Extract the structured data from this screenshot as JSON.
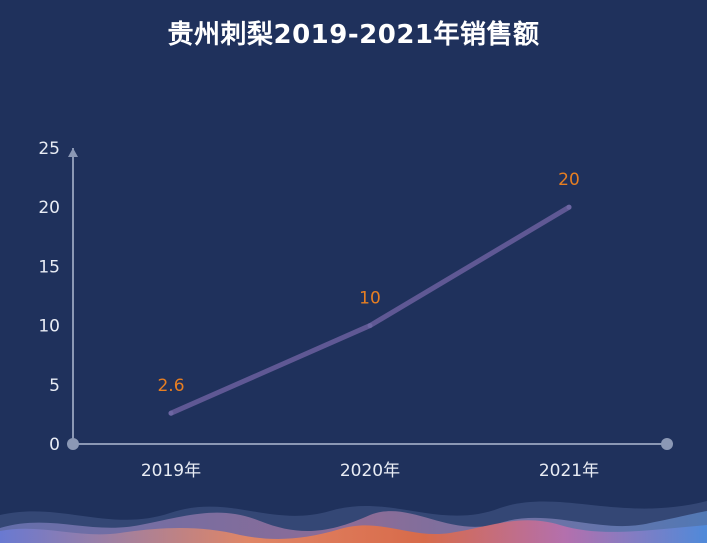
{
  "chart_data": {
    "type": "line",
    "title": "贵州刺梨2019-2021年销售额",
    "categories": [
      "2019年",
      "2020年",
      "2021年"
    ],
    "series": [
      {
        "values": [
          2.6,
          10,
          20
        ]
      }
    ],
    "data_labels": [
      "2.6",
      "10",
      "20"
    ],
    "ylim": [
      0,
      25
    ],
    "yticks": [
      0,
      5,
      10,
      15,
      20,
      25
    ],
    "grid": false,
    "legend": "none",
    "colors": {
      "background": "#1f315c",
      "line": "#5f5894",
      "axis": "#8b98b5",
      "data_label": "#e67e22",
      "tick_label": "#e8ecf4"
    }
  }
}
